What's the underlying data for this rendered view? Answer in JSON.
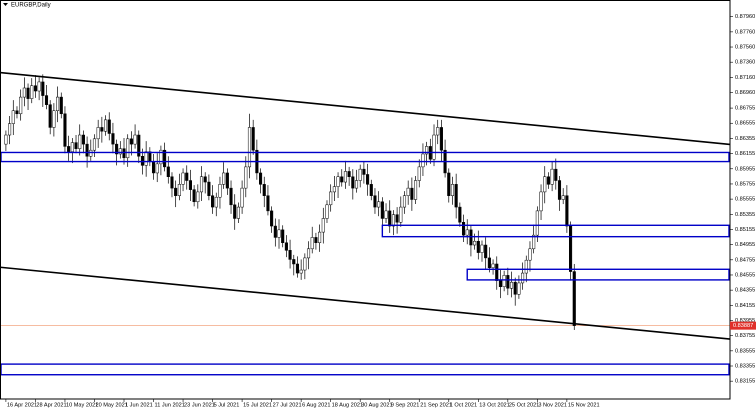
{
  "chart_data": {
    "type": "candlestick",
    "title": "EURGBP,Daily",
    "up_color": "#ffffff",
    "down_color": "#000000",
    "outline_color": "#000000",
    "xlim": [
      -1.6,
      196.2
    ],
    "ylim": [
      0.8292,
      0.8818
    ],
    "yticks": [
      {
        "value": 0.8796,
        "label": "0.87960"
      },
      {
        "value": 0.8776,
        "label": "0.87760"
      },
      {
        "value": 0.8756,
        "label": "0.87560"
      },
      {
        "value": 0.8736,
        "label": "0.87360"
      },
      {
        "value": 0.8716,
        "label": "0.87160"
      },
      {
        "value": 0.8696,
        "label": "0.86960"
      },
      0.86755,
      0.86555,
      0.86355,
      0.86155,
      0.85955,
      0.85755,
      0.85555,
      0.85355,
      0.85155,
      0.84955,
      0.84755,
      0.84555,
      0.84355,
      0.84155,
      0.83955,
      0.83755,
      0.83555,
      0.83355,
      0.83155
    ],
    "xticks": [
      {
        "value": 0,
        "label": "16 Apr 2021"
      },
      {
        "value": 8,
        "label": "28 Apr 2021"
      },
      {
        "value": 16,
        "label": "10 May 2021"
      },
      {
        "value": 24,
        "label": "20 May 2021"
      },
      {
        "value": 32,
        "label": "1 Jun 2021"
      },
      {
        "value": 40,
        "label": "11 Jun 2021"
      },
      {
        "value": 48,
        "label": "23 Jun 2021"
      },
      {
        "value": 56,
        "label": "5 Jul 2021"
      },
      {
        "value": 64,
        "label": "15 Jul 2021"
      },
      {
        "value": 72,
        "label": "27 Jul 2021"
      },
      {
        "value": 80,
        "label": "6 Aug 2021"
      },
      {
        "value": 88,
        "label": "18 Aug 2021"
      },
      {
        "value": 96,
        "label": "30 Aug 2021"
      },
      {
        "value": 104,
        "label": "9 Sep 2021"
      },
      {
        "value": 112,
        "label": "21 Sep 2021"
      },
      {
        "value": 120,
        "label": "1 Oct 2021"
      },
      {
        "value": 128,
        "label": "13 Oct 2021"
      },
      {
        "value": 136,
        "label": "25 Oct 2021"
      },
      {
        "value": 144,
        "label": "3 Nov 2021"
      },
      {
        "value": 152,
        "label": "15 Nov 2021"
      }
    ],
    "current_price": 0.83887,
    "current_price_color": "#f4a582",
    "current_price_label_color": "#e0302a",
    "trendline_color": "#000000",
    "trendlines": [
      {
        "start": [
          -1.6,
          0.87223
        ],
        "end": [
          196.2,
          0.86276
        ]
      },
      {
        "start": [
          -1.6,
          0.84657
        ],
        "end": [
          196.2,
          0.8371
        ]
      }
    ],
    "zone_color": "#0000c8",
    "zones": [
      {
        "start": -1.6,
        "top": 0.8617,
        "bottom": 0.8605
      },
      {
        "start": 102,
        "top": 0.8521,
        "bottom": 0.8506
      },
      {
        "start": 125,
        "top": 0.8463,
        "bottom": 0.8449
      },
      {
        "start": -1.6,
        "top": 0.8338,
        "bottom": 0.8324
      }
    ],
    "candles": [
      [
        0.8628,
        0.8646,
        0.8619,
        0.864
      ],
      [
        0.864,
        0.8665,
        0.8628,
        0.8655
      ],
      [
        0.8655,
        0.8686,
        0.864,
        0.8672
      ],
      [
        0.8672,
        0.8678,
        0.8662,
        0.8668
      ],
      [
        0.8668,
        0.87,
        0.8659,
        0.869
      ],
      [
        0.869,
        0.8716,
        0.8678,
        0.8702
      ],
      [
        0.8702,
        0.8708,
        0.8673,
        0.8688
      ],
      [
        0.8688,
        0.8715,
        0.8682,
        0.8705
      ],
      [
        0.8705,
        0.8719,
        0.8689,
        0.8698
      ],
      [
        0.8698,
        0.8716,
        0.8686,
        0.871
      ],
      [
        0.871,
        0.872,
        0.8677,
        0.8692
      ],
      [
        0.8692,
        0.8706,
        0.8674,
        0.868
      ],
      [
        0.868,
        0.8686,
        0.8641,
        0.865
      ],
      [
        0.865,
        0.8682,
        0.8638,
        0.8672
      ],
      [
        0.8672,
        0.8704,
        0.8657,
        0.869
      ],
      [
        0.869,
        0.8696,
        0.8662,
        0.8668
      ],
      [
        0.8668,
        0.8678,
        0.8616,
        0.8625
      ],
      [
        0.8625,
        0.8639,
        0.8606,
        0.8618
      ],
      [
        0.8618,
        0.8636,
        0.8603,
        0.863
      ],
      [
        0.863,
        0.864,
        0.8616,
        0.8622
      ],
      [
        0.8622,
        0.8654,
        0.8613,
        0.864
      ],
      [
        0.864,
        0.8646,
        0.8616,
        0.8628
      ],
      [
        0.8628,
        0.8638,
        0.8597,
        0.8612
      ],
      [
        0.8612,
        0.8634,
        0.8606,
        0.862
      ],
      [
        0.862,
        0.8641,
        0.8611,
        0.8635
      ],
      [
        0.8635,
        0.866,
        0.8623,
        0.865
      ],
      [
        0.865,
        0.8664,
        0.863,
        0.8645
      ],
      [
        0.8645,
        0.8666,
        0.8639,
        0.866
      ],
      [
        0.866,
        0.867,
        0.8633,
        0.8642
      ],
      [
        0.8642,
        0.8656,
        0.8616,
        0.8628
      ],
      [
        0.8628,
        0.8634,
        0.86,
        0.8615
      ],
      [
        0.8615,
        0.8632,
        0.8609,
        0.8622
      ],
      [
        0.8622,
        0.8636,
        0.8601,
        0.861
      ],
      [
        0.861,
        0.8641,
        0.8598,
        0.8635
      ],
      [
        0.8635,
        0.8645,
        0.8613,
        0.8628
      ],
      [
        0.8628,
        0.8654,
        0.8622,
        0.864
      ],
      [
        0.864,
        0.8646,
        0.8603,
        0.8612
      ],
      [
        0.8612,
        0.8622,
        0.8588,
        0.86
      ],
      [
        0.86,
        0.8632,
        0.8585,
        0.8618
      ],
      [
        0.8618,
        0.8624,
        0.8599,
        0.8605
      ],
      [
        0.8605,
        0.8615,
        0.8581,
        0.859
      ],
      [
        0.859,
        0.8616,
        0.8578,
        0.8602
      ],
      [
        0.8602,
        0.8626,
        0.8587,
        0.862
      ],
      [
        0.862,
        0.863,
        0.8592,
        0.8598
      ],
      [
        0.8598,
        0.8612,
        0.8576,
        0.8585
      ],
      [
        0.8585,
        0.8591,
        0.8558,
        0.857
      ],
      [
        0.857,
        0.858,
        0.8545,
        0.856
      ],
      [
        0.856,
        0.8589,
        0.8554,
        0.8575
      ],
      [
        0.8575,
        0.8596,
        0.8566,
        0.859
      ],
      [
        0.859,
        0.86,
        0.8568,
        0.858
      ],
      [
        0.858,
        0.8594,
        0.8553,
        0.8568
      ],
      [
        0.8568,
        0.8574,
        0.8546,
        0.8552
      ],
      [
        0.8552,
        0.8575,
        0.8543,
        0.8565
      ],
      [
        0.8565,
        0.8599,
        0.8553,
        0.8585
      ],
      [
        0.8585,
        0.8591,
        0.8563,
        0.8578
      ],
      [
        0.8578,
        0.8588,
        0.8554,
        0.856
      ],
      [
        0.856,
        0.8574,
        0.8536,
        0.8545
      ],
      [
        0.8545,
        0.8564,
        0.8533,
        0.8558
      ],
      [
        0.8558,
        0.8585,
        0.8543,
        0.8575
      ],
      [
        0.8575,
        0.8604,
        0.8569,
        0.859
      ],
      [
        0.859,
        0.8596,
        0.8561,
        0.857
      ],
      [
        0.857,
        0.858,
        0.8536,
        0.8548
      ],
      [
        0.8548,
        0.8562,
        0.8515,
        0.853
      ],
      [
        0.853,
        0.8551,
        0.8524,
        0.8545
      ],
      [
        0.8545,
        0.858,
        0.8536,
        0.857
      ],
      [
        0.857,
        0.8612,
        0.8558,
        0.8598
      ],
      [
        0.8598,
        0.8668,
        0.8583,
        0.865
      ],
      [
        0.865,
        0.866,
        0.8614,
        0.862
      ],
      [
        0.862,
        0.8634,
        0.8581,
        0.859
      ],
      [
        0.859,
        0.8596,
        0.8563,
        0.8575
      ],
      [
        0.8575,
        0.8585,
        0.8545,
        0.856
      ],
      [
        0.856,
        0.8574,
        0.8534,
        0.854
      ],
      [
        0.854,
        0.8546,
        0.8511,
        0.852
      ],
      [
        0.852,
        0.853,
        0.8493,
        0.8505
      ],
      [
        0.8505,
        0.8529,
        0.849,
        0.8515
      ],
      [
        0.8515,
        0.8521,
        0.8492,
        0.8498
      ],
      [
        0.8498,
        0.8508,
        0.8479,
        0.8488
      ],
      [
        0.8488,
        0.8502,
        0.8464,
        0.8476
      ],
      [
        0.8476,
        0.8482,
        0.8455,
        0.847
      ],
      [
        0.847,
        0.848,
        0.8452,
        0.8458
      ],
      [
        0.8458,
        0.8476,
        0.8449,
        0.8462
      ],
      [
        0.8462,
        0.8484,
        0.845,
        0.8478
      ],
      [
        0.8478,
        0.85,
        0.8463,
        0.849
      ],
      [
        0.849,
        0.8519,
        0.8484,
        0.8505
      ],
      [
        0.8505,
        0.8511,
        0.8489,
        0.8498
      ],
      [
        0.8498,
        0.8522,
        0.8486,
        0.8512
      ],
      [
        0.8512,
        0.8544,
        0.8497,
        0.853
      ],
      [
        0.853,
        0.8554,
        0.8524,
        0.8548
      ],
      [
        0.8548,
        0.8575,
        0.8539,
        0.8565
      ],
      [
        0.8565,
        0.8586,
        0.8553,
        0.8572
      ],
      [
        0.8572,
        0.8591,
        0.8557,
        0.8585
      ],
      [
        0.8585,
        0.8595,
        0.8572,
        0.8578
      ],
      [
        0.8578,
        0.8606,
        0.8569,
        0.8592
      ],
      [
        0.8592,
        0.8598,
        0.8573,
        0.8585
      ],
      [
        0.8585,
        0.8595,
        0.8555,
        0.857
      ],
      [
        0.857,
        0.8594,
        0.8564,
        0.858
      ],
      [
        0.858,
        0.8601,
        0.8571,
        0.8595
      ],
      [
        0.8595,
        0.8605,
        0.8576,
        0.8588
      ],
      [
        0.8588,
        0.8602,
        0.856,
        0.8575
      ],
      [
        0.8575,
        0.8581,
        0.8554,
        0.856
      ],
      [
        0.856,
        0.857,
        0.8536,
        0.8545
      ],
      [
        0.8545,
        0.8566,
        0.8533,
        0.8552
      ],
      [
        0.8552,
        0.8558,
        0.8515,
        0.853
      ],
      [
        0.853,
        0.855,
        0.8524,
        0.854
      ],
      [
        0.854,
        0.8554,
        0.8511,
        0.852
      ],
      [
        0.852,
        0.8541,
        0.8508,
        0.8535
      ],
      [
        0.8535,
        0.8545,
        0.851,
        0.8525
      ],
      [
        0.8525,
        0.8559,
        0.8519,
        0.8545
      ],
      [
        0.8545,
        0.8566,
        0.8536,
        0.856
      ],
      [
        0.856,
        0.858,
        0.8548,
        0.857
      ],
      [
        0.857,
        0.8584,
        0.854,
        0.8555
      ],
      [
        0.8555,
        0.8586,
        0.8549,
        0.858
      ],
      [
        0.858,
        0.8608,
        0.8571,
        0.8598
      ],
      [
        0.8598,
        0.8629,
        0.8586,
        0.8615
      ],
      [
        0.8615,
        0.8631,
        0.86,
        0.8625
      ],
      [
        0.8625,
        0.8635,
        0.8602,
        0.8608
      ],
      [
        0.8608,
        0.8654,
        0.8599,
        0.864
      ],
      [
        0.864,
        0.866,
        0.8628,
        0.865
      ],
      [
        0.865,
        0.866,
        0.8605,
        0.862
      ],
      [
        0.862,
        0.8634,
        0.8584,
        0.859
      ],
      [
        0.859,
        0.8596,
        0.8551,
        0.856
      ],
      [
        0.856,
        0.8585,
        0.8548,
        0.8575
      ],
      [
        0.8575,
        0.8589,
        0.853,
        0.8545
      ],
      [
        0.8545,
        0.8551,
        0.8519,
        0.8525
      ],
      [
        0.8525,
        0.8535,
        0.8499,
        0.8508
      ],
      [
        0.8508,
        0.8529,
        0.8496,
        0.8515
      ],
      [
        0.8515,
        0.8521,
        0.848,
        0.8495
      ],
      [
        0.8495,
        0.851,
        0.8489,
        0.85
      ],
      [
        0.85,
        0.8514,
        0.8476,
        0.8485
      ],
      [
        0.8485,
        0.8501,
        0.8473,
        0.8495
      ],
      [
        0.8495,
        0.8505,
        0.8463,
        0.8478
      ],
      [
        0.8478,
        0.8492,
        0.8459,
        0.8465
      ],
      [
        0.8465,
        0.8476,
        0.8456,
        0.847
      ],
      [
        0.847,
        0.848,
        0.8436,
        0.8448
      ],
      [
        0.8448,
        0.8462,
        0.8425,
        0.844
      ],
      [
        0.844,
        0.8461,
        0.8434,
        0.8455
      ],
      [
        0.8455,
        0.8465,
        0.8429,
        0.8438
      ],
      [
        0.8438,
        0.846,
        0.8426,
        0.8446
      ],
      [
        0.8446,
        0.8452,
        0.8415,
        0.843
      ],
      [
        0.843,
        0.8455,
        0.8424,
        0.8445
      ],
      [
        0.8445,
        0.8472,
        0.8436,
        0.8458
      ],
      [
        0.8458,
        0.8481,
        0.8446,
        0.8475
      ],
      [
        0.8475,
        0.85,
        0.846,
        0.849
      ],
      [
        0.849,
        0.8522,
        0.8484,
        0.8508
      ],
      [
        0.8508,
        0.8546,
        0.8499,
        0.854
      ],
      [
        0.854,
        0.8575,
        0.8528,
        0.8565
      ],
      [
        0.8565,
        0.8599,
        0.855,
        0.8585
      ],
      [
        0.8585,
        0.8591,
        0.8569,
        0.8575
      ],
      [
        0.8575,
        0.8605,
        0.8566,
        0.8595
      ],
      [
        0.8595,
        0.8609,
        0.8568,
        0.858
      ],
      [
        0.858,
        0.8586,
        0.854,
        0.8555
      ],
      [
        0.8555,
        0.857,
        0.8549,
        0.856
      ],
      [
        0.856,
        0.8574,
        0.8511,
        0.852
      ],
      [
        0.852,
        0.8526,
        0.8448,
        0.846
      ],
      [
        0.846,
        0.847,
        0.8383,
        0.83887
      ]
    ]
  }
}
